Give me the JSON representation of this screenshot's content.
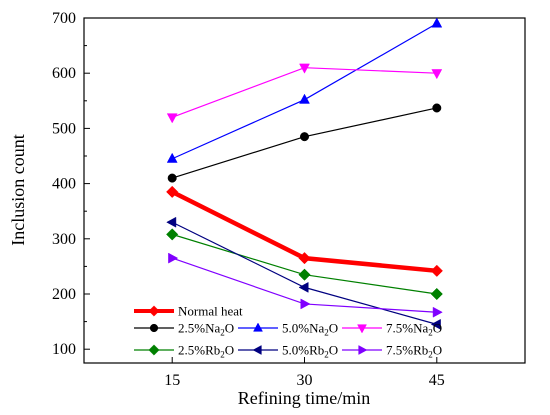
{
  "chart_data": {
    "type": "line",
    "title": "",
    "xlabel": "Refining time/min",
    "ylabel": "Inclusion count",
    "x": [
      15,
      30,
      45
    ],
    "xticks": [
      "15",
      "30",
      "45"
    ],
    "xlim": [
      5,
      55
    ],
    "yticks": [
      "100",
      "200",
      "300",
      "400",
      "500",
      "600",
      "700"
    ],
    "ylim": [
      75,
      700
    ],
    "grid": false,
    "legend_position": "bottom-left",
    "series": [
      {
        "name": "Normal heat",
        "name_main": "Normal heat",
        "name_sub": "",
        "name_end": "",
        "values": [
          385,
          265,
          242
        ],
        "color": "#ff0000",
        "marker": "diamond",
        "bold": true
      },
      {
        "name": "2.5%Na2O",
        "name_main": "2.5%Na",
        "name_sub": "2",
        "name_end": "O",
        "values": [
          410,
          485,
          537
        ],
        "color": "#000000",
        "marker": "circle"
      },
      {
        "name": "5.0%Na2O",
        "name_main": "5.0%Na",
        "name_sub": "2",
        "name_end": "O",
        "values": [
          445,
          552,
          690
        ],
        "color": "#0000ff",
        "marker": "triangle-up"
      },
      {
        "name": "7.5%Na2O",
        "name_main": "7.5%Na",
        "name_sub": "2",
        "name_end": "O",
        "values": [
          520,
          610,
          600
        ],
        "color": "#ff00ff",
        "marker": "triangle-down"
      },
      {
        "name": "2.5%Rb2O",
        "name_main": "2.5%Rb",
        "name_sub": "2",
        "name_end": "O",
        "values": [
          308,
          235,
          200
        ],
        "color": "#008000",
        "marker": "diamond"
      },
      {
        "name": "5.0%Rb2O",
        "name_main": "5.0%Rb",
        "name_sub": "2",
        "name_end": "O",
        "values": [
          330,
          212,
          145
        ],
        "color": "#000080",
        "marker": "triangle-left"
      },
      {
        "name": "7.5%Rb2O",
        "name_main": "7.5%Rb",
        "name_sub": "2",
        "name_end": "O",
        "values": [
          265,
          182,
          167
        ],
        "color": "#8000ff",
        "marker": "triangle-right"
      }
    ]
  }
}
